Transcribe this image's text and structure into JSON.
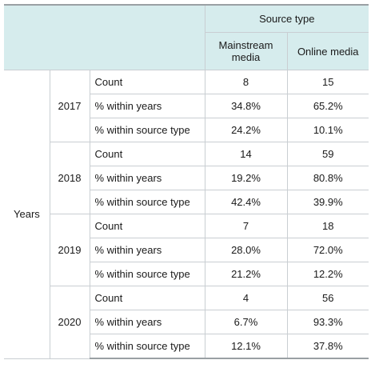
{
  "header": {
    "source_type": "Source type",
    "mainstream": "Mainstream media",
    "online": "Online media"
  },
  "row_group_label": "Years",
  "groups": [
    {
      "year": "2017",
      "rows": [
        {
          "label": "Count",
          "mainstream": "8",
          "online": "15"
        },
        {
          "label": "% within years",
          "mainstream": "34.8%",
          "online": "65.2%"
        },
        {
          "label": "% within source type",
          "mainstream": "24.2%",
          "online": "10.1%"
        }
      ]
    },
    {
      "year": "2018",
      "rows": [
        {
          "label": "Count",
          "mainstream": "14",
          "online": "59"
        },
        {
          "label": "% within years",
          "mainstream": "19.2%",
          "online": "80.8%"
        },
        {
          "label": "% within source type",
          "mainstream": "42.4%",
          "online": "39.9%"
        }
      ]
    },
    {
      "year": "2019",
      "rows": [
        {
          "label": "Count",
          "mainstream": "7",
          "online": "18"
        },
        {
          "label": "% within years",
          "mainstream": "28.0%",
          "online": "72.0%"
        },
        {
          "label": "% within source type",
          "mainstream": "21.2%",
          "online": "12.2%"
        }
      ]
    },
    {
      "year": "2020",
      "rows": [
        {
          "label": "Count",
          "mainstream": "4",
          "online": "56"
        },
        {
          "label": "% within years",
          "mainstream": "6.7%",
          "online": "93.3%"
        },
        {
          "label": "% within source type",
          "mainstream": "12.1%",
          "online": "37.8%"
        }
      ]
    }
  ]
}
